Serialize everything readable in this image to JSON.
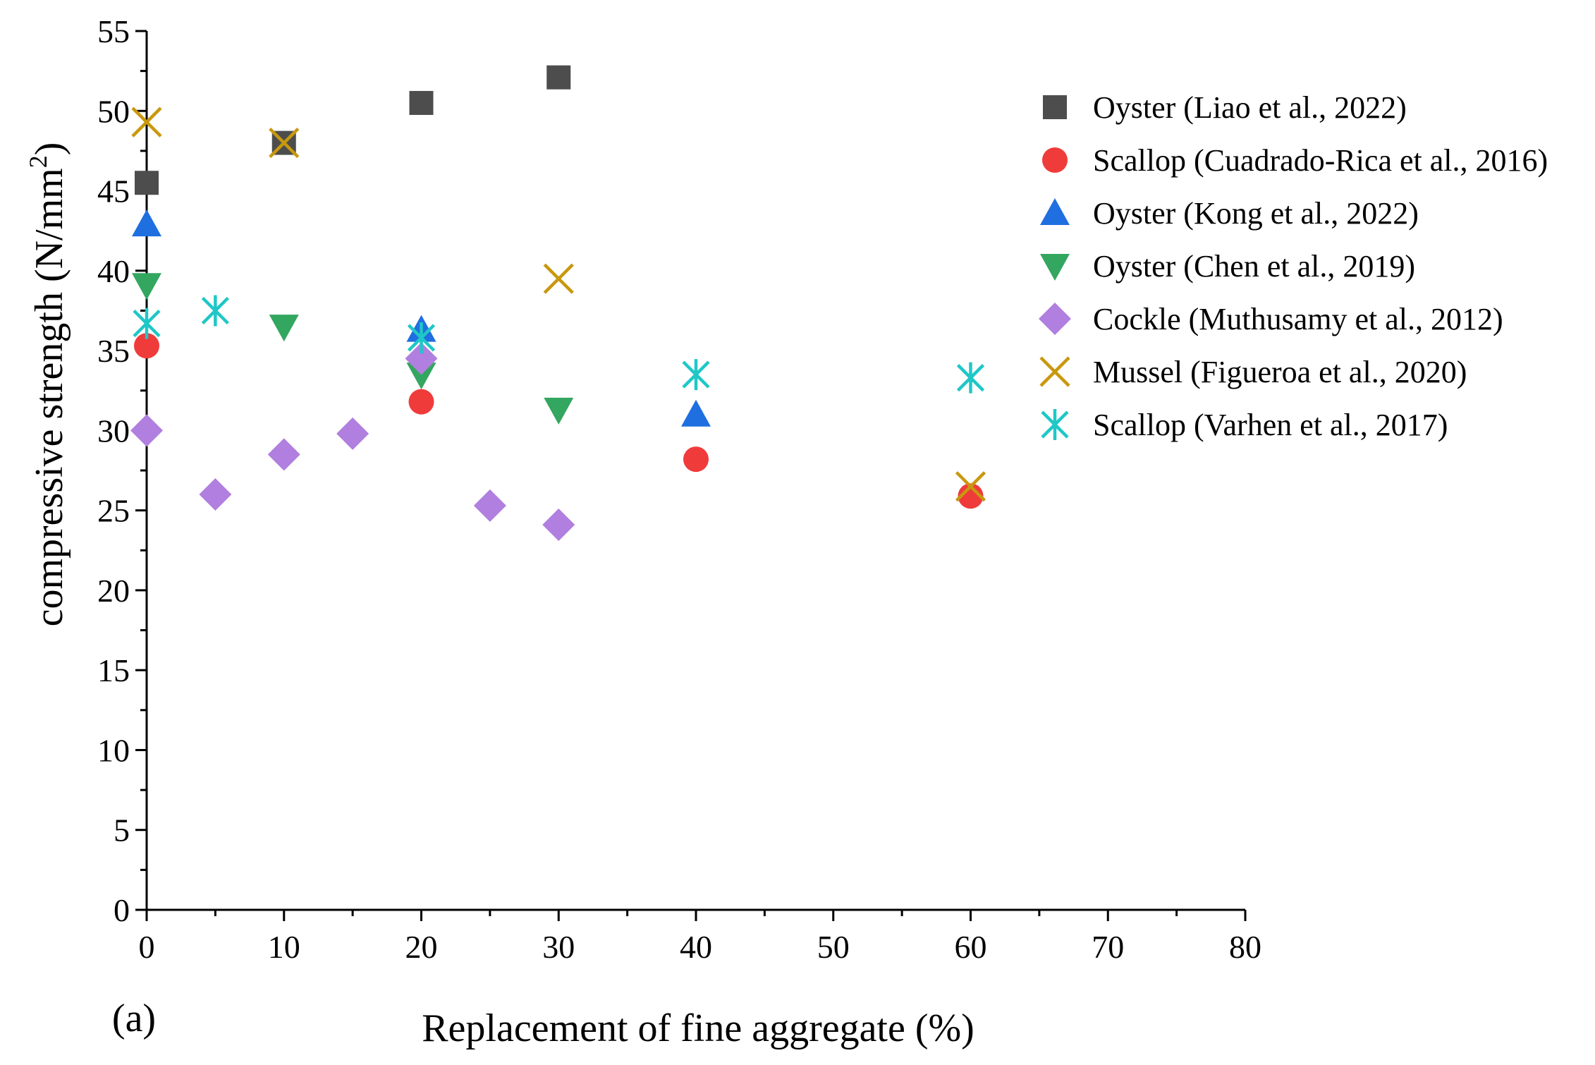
{
  "chart_data": {
    "type": "scatter",
    "panel_label": "(a)",
    "xlabel": "Replacement of fine aggregate (%)",
    "ylabel_main": "compressive strength (N/mm",
    "ylabel_sup": "2",
    "ylabel_end": ")",
    "xlim": [
      0,
      80
    ],
    "ylim": [
      0,
      55
    ],
    "xticks": [
      0,
      10,
      20,
      30,
      40,
      50,
      60,
      70,
      80
    ],
    "yticks": [
      0,
      5,
      10,
      15,
      20,
      25,
      30,
      35,
      40,
      45,
      50,
      55
    ],
    "legend_position": "top-right",
    "series": [
      {
        "name": "Oyster (Liao et al., 2022)",
        "marker": "square",
        "color": "#4d4d4d",
        "x": [
          0,
          10,
          20,
          30
        ],
        "y": [
          45.5,
          48.0,
          50.5,
          52.1
        ]
      },
      {
        "name": "Scallop (Cuadrado-Rica et al., 2016)",
        "marker": "circle",
        "color": "#f03b3b",
        "x": [
          0,
          20,
          40,
          60
        ],
        "y": [
          35.3,
          31.8,
          28.2,
          25.9
        ]
      },
      {
        "name": "Oyster (Kong et al., 2022)",
        "marker": "triangle-up",
        "color": "#1f6fe0",
        "x": [
          0,
          20,
          40
        ],
        "y": [
          42.9,
          36.3,
          31.0
        ]
      },
      {
        "name": "Oyster (Chen et al., 2019)",
        "marker": "triangle-down",
        "color": "#33a660",
        "x": [
          0,
          10,
          20,
          30
        ],
        "y": [
          39.1,
          36.5,
          33.5,
          31.3
        ]
      },
      {
        "name": "Cockle (Muthusamy et al., 2012)",
        "marker": "diamond",
        "color": "#b07fdf",
        "x": [
          0,
          5,
          10,
          15,
          20,
          25,
          30
        ],
        "y": [
          30.0,
          26.0,
          28.5,
          29.8,
          34.5,
          25.3,
          24.1
        ]
      },
      {
        "name": "Mussel (Figueroa et al., 2020)",
        "marker": "x",
        "color": "#c8980e",
        "x": [
          0,
          10,
          30,
          60
        ],
        "y": [
          49.3,
          48.0,
          39.5,
          26.5
        ]
      },
      {
        "name": "Scallop (Varhen et al., 2017)",
        "marker": "asterisk",
        "color": "#1fc7c7",
        "x": [
          0,
          5,
          20,
          40,
          60
        ],
        "y": [
          36.7,
          37.5,
          35.8,
          33.5,
          33.3
        ]
      }
    ]
  }
}
